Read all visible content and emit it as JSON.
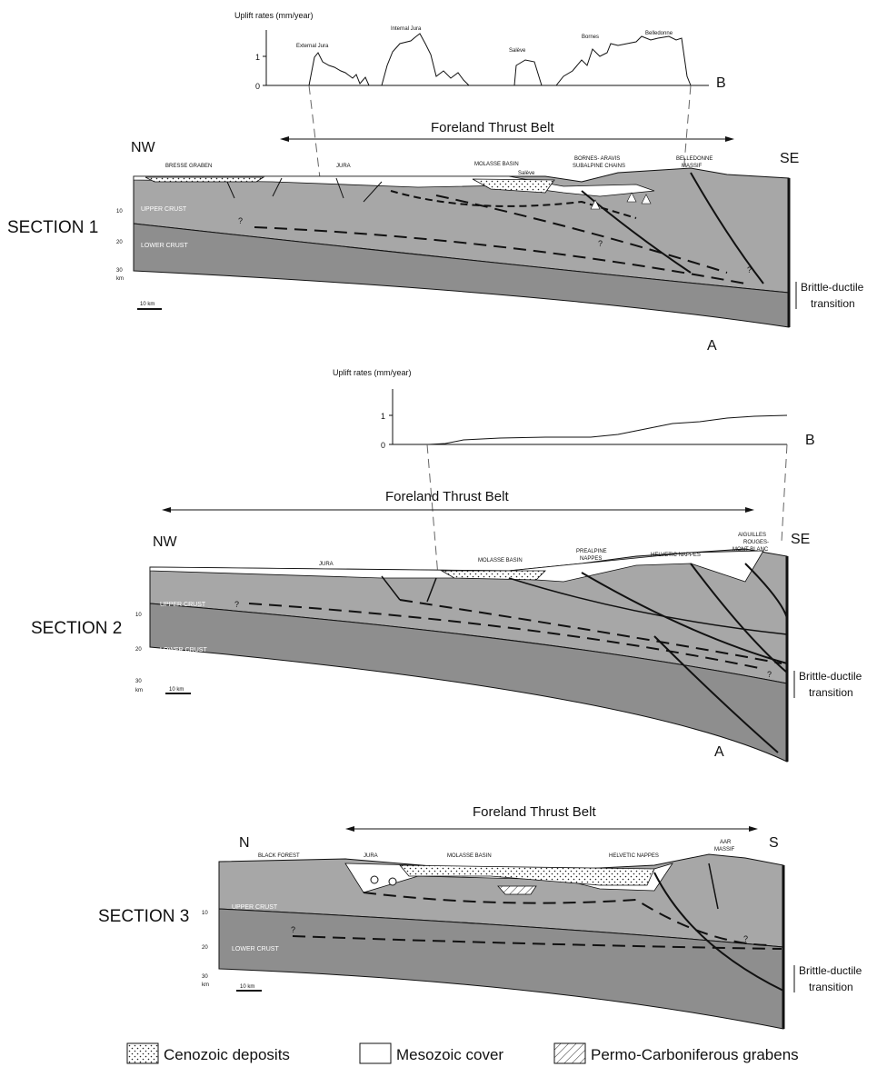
{
  "colors": {
    "upper_crust": "#a7a7a7",
    "lower_crust": "#8e8e8e",
    "mesozoic": "#ffffff",
    "line": "#111111"
  },
  "section1": {
    "uplift_title": "Uplift rates (mm/year)",
    "uplift_ticks": [
      "1",
      "0"
    ],
    "uplift_labels": [
      "External Jura",
      "Internal Jura",
      "Salève",
      "Bornes",
      "Belledonne"
    ],
    "point_b": "B",
    "belt": "Foreland Thrust Belt",
    "left_dir": "NW",
    "right_dir": "SE",
    "title": "SECTION 1",
    "units": [
      "BRESSE GRABEN",
      "JURA",
      "MOLASSE BASIN",
      "Salève",
      "BORNES- ARAVIS",
      "SUBALPINE CHAINS",
      "BELLEDONNE",
      "MASSIF"
    ],
    "upper_crust": "UPPER CRUST",
    "lower_crust": "LOWER CRUST",
    "depth_ticks": [
      "10",
      "20",
      "30",
      "km"
    ],
    "scale": "10 km",
    "question": "?",
    "transition_1": "Brittle-ductile",
    "transition_2": "transition",
    "point_a": "A"
  },
  "section2": {
    "uplift_title": "Uplift rates (mm/year)",
    "uplift_ticks": [
      "1",
      "0"
    ],
    "point_b": "B",
    "belt": "Foreland Thrust Belt",
    "left_dir": "NW",
    "right_dir": "SE",
    "title": "SECTION 2",
    "units": [
      "JURA",
      "MOLASSE BASIN",
      "PREALPINE",
      "NAPPES",
      "HELVETIC NAPPES",
      "AIGUILLES",
      "ROUGES-",
      "MONT BLANC"
    ],
    "upper_crust": "UPPER CRUST",
    "lower_crust": "LOWER CRUST",
    "depth_ticks": [
      "10",
      "20",
      "30",
      "km"
    ],
    "scale": "10 km",
    "question": "?",
    "transition_1": "Brittle-ductile",
    "transition_2": "transition",
    "point_a": "A"
  },
  "section3": {
    "belt": "Foreland Thrust Belt",
    "left_dir": "N",
    "right_dir": "S",
    "title": "SECTION 3",
    "units": [
      "BLACK FOREST",
      "JURA",
      "MOLASSE BASIN",
      "HELVETIC NAPPES",
      "AAR",
      "MASSIF"
    ],
    "upper_crust": "UPPER CRUST",
    "lower_crust": "LOWER CRUST",
    "depth_ticks": [
      "10",
      "20",
      "30",
      "km"
    ],
    "scale": "10 km",
    "question": "?",
    "transition_1": "Brittle-ductile",
    "transition_2": "transition"
  },
  "legend": {
    "cenozoic": "Cenozoic   deposits",
    "mesozoic": "Mesozoic cover",
    "permo": "Permo-Carboniferous grabens"
  }
}
